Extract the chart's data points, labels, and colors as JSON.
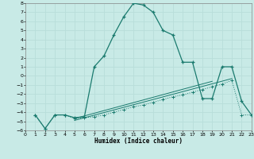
{
  "xlabel": "Humidex (Indice chaleur)",
  "bg_color": "#c8eae6",
  "line_color": "#1a7a6e",
  "grid_color": "#b8deda",
  "xlim": [
    0,
    23
  ],
  "ylim": [
    -6,
    8
  ],
  "xticks": [
    0,
    1,
    2,
    3,
    4,
    5,
    6,
    7,
    8,
    9,
    10,
    11,
    12,
    13,
    14,
    15,
    16,
    17,
    18,
    19,
    20,
    21,
    22,
    23
  ],
  "yticks": [
    -6,
    -5,
    -4,
    -3,
    -2,
    -1,
    0,
    1,
    2,
    3,
    4,
    5,
    6,
    7,
    8
  ],
  "curve1_x": [
    1,
    2,
    3,
    4,
    5,
    6,
    7,
    8,
    9,
    10,
    11,
    12,
    13,
    14,
    15,
    16,
    17,
    18,
    19,
    20,
    21,
    22,
    23
  ],
  "curve1_y": [
    -4.3,
    -5.8,
    -4.3,
    -4.3,
    -4.6,
    -4.5,
    1.0,
    2.2,
    4.5,
    6.5,
    8.0,
    7.8,
    7.0,
    5.0,
    4.5,
    1.5,
    1.5,
    -2.5,
    -2.5,
    1.0,
    1.0,
    -2.8,
    -4.3
  ],
  "curve2_x": [
    1,
    2,
    3,
    4,
    5,
    6,
    7,
    8,
    9,
    10,
    11,
    12,
    13,
    14,
    15,
    16,
    17,
    18,
    19,
    20,
    21,
    22,
    23
  ],
  "curve2_y": [
    -4.3,
    -5.8,
    -4.3,
    -4.3,
    -4.7,
    -4.6,
    -4.5,
    -4.3,
    -4.0,
    -3.7,
    -3.4,
    -3.2,
    -2.9,
    -2.6,
    -2.3,
    -2.1,
    -1.8,
    -1.5,
    -1.2,
    -0.9,
    -0.5,
    -4.3,
    -4.3
  ],
  "line3_x": [
    5,
    19
  ],
  "line3_y": [
    -4.7,
    -0.6
  ],
  "line4_x": [
    5,
    21
  ],
  "line4_y": [
    -4.9,
    -0.3
  ]
}
